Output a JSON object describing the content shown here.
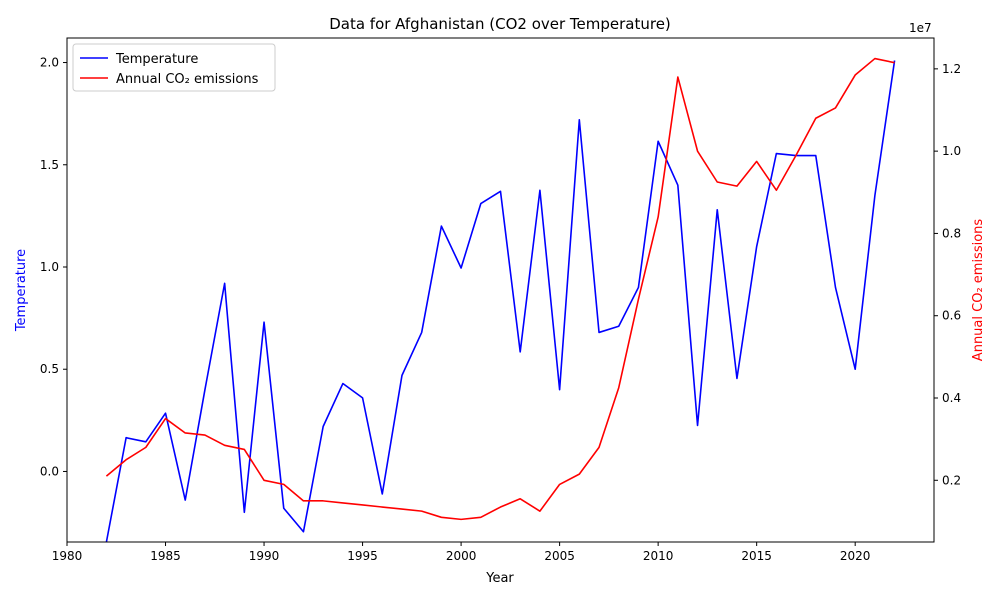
{
  "chart_data": {
    "type": "line",
    "title": "Data for Afghanistan (CO2 over Temperature)",
    "xlabel": "Year",
    "ylabel_left": "Temperature",
    "ylabel_right": "Annual CO₂ emissions",
    "right_axis_offset_label": "1e7",
    "xlim": [
      1980,
      2024
    ],
    "ylim_left": [
      -0.345,
      2.12
    ],
    "ylim_right": [
      500000,
      12750000
    ],
    "x_ticks": [
      1980,
      1985,
      1990,
      1995,
      2000,
      2005,
      2010,
      2015,
      2020
    ],
    "x_tick_labels": [
      "1980",
      "1985",
      "1990",
      "1995",
      "2000",
      "2005",
      "2010",
      "2015",
      "2020"
    ],
    "y_left_ticks": [
      0.0,
      0.5,
      1.0,
      1.5,
      2.0
    ],
    "y_left_tick_labels": [
      "0.0",
      "0.5",
      "1.0",
      "1.5",
      "2.0"
    ],
    "y_right_ticks": [
      2000000,
      4000000,
      6000000,
      8000000,
      10000000,
      12000000
    ],
    "y_right_tick_labels": [
      "0.2",
      "0.4",
      "0.6",
      "0.8",
      "1.0",
      "1.2"
    ],
    "legend_position": "top-left",
    "grid": false,
    "x": [
      1982,
      1983,
      1984,
      1985,
      1986,
      1987,
      1988,
      1989,
      1990,
      1991,
      1992,
      1993,
      1994,
      1995,
      1996,
      1997,
      1998,
      1999,
      2000,
      2001,
      2002,
      2003,
      2004,
      2005,
      2006,
      2007,
      2008,
      2009,
      2010,
      2011,
      2012,
      2013,
      2014,
      2015,
      2016,
      2017,
      2018,
      2019,
      2020,
      2021,
      2022
    ],
    "series": [
      {
        "name": "Temperature",
        "axis": "left",
        "color": "#0000ff",
        "values": [
          -0.345,
          0.165,
          0.145,
          0.285,
          -0.14,
          0.4,
          0.92,
          -0.2,
          0.73,
          -0.18,
          -0.295,
          0.22,
          0.43,
          0.36,
          -0.11,
          0.47,
          0.68,
          1.2,
          0.995,
          1.31,
          1.37,
          0.585,
          1.375,
          0.4,
          1.72,
          0.68,
          0.71,
          0.9,
          1.615,
          1.4,
          0.225,
          1.28,
          0.455,
          1.1,
          1.555,
          1.545,
          1.545,
          0.9,
          0.5,
          1.35,
          2.01
        ]
      },
      {
        "name": "Annual CO₂ emissions",
        "axis": "right",
        "color": "#ff0000",
        "values": [
          2100000,
          2500000,
          2800000,
          3500000,
          3150000,
          3100000,
          2850000,
          2750000,
          2000000,
          1900000,
          1500000,
          1500000,
          1450000,
          1400000,
          1350000,
          1300000,
          1250000,
          1100000,
          1050000,
          1100000,
          1350000,
          1550000,
          1250000,
          1900000,
          2150000,
          2800000,
          4250000,
          6400000,
          8400000,
          11800000,
          10000000,
          9250000,
          9150000,
          9750000,
          9050000,
          9900000,
          10800000,
          11050000,
          11850000,
          12250000,
          12150000
        ]
      }
    ]
  }
}
